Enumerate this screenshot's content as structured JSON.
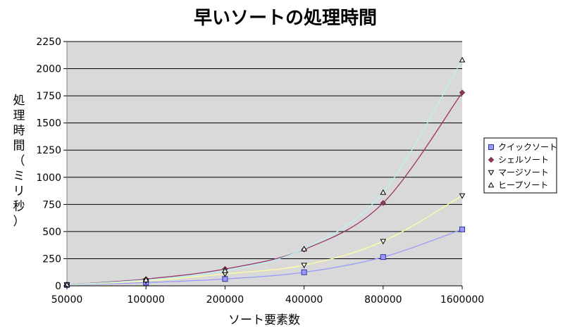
{
  "chart_data": {
    "type": "scatter",
    "title": "早いソートの処理時間",
    "xlabel": "ソート要素数",
    "ylabel": "処理時間（ミリ秒）",
    "x": [
      50000,
      100000,
      200000,
      400000,
      800000,
      1600000
    ],
    "x_tick_labels": [
      "50000",
      "100000",
      "200000",
      "400000",
      "800000",
      "1600000"
    ],
    "x_scale": "log",
    "ylim": [
      0,
      2250
    ],
    "y_ticks": [
      0,
      250,
      500,
      750,
      1000,
      1250,
      1500,
      1750,
      2000,
      2250
    ],
    "y_tick_labels": [
      "0",
      "250",
      "500",
      "750",
      "1000",
      "1250",
      "1500",
      "1750",
      "2000",
      "2250"
    ],
    "grid": true,
    "legend_position": "right",
    "series": [
      {
        "name": "クイックソート",
        "marker": "square",
        "color": "#9999ff",
        "marker_fill": "#9999ff",
        "marker_stroke": "#333399",
        "trend_color": "#9999ff",
        "values": [
          8,
          30,
          63,
          125,
          265,
          520
        ]
      },
      {
        "name": "シェルソート",
        "marker": "diamond",
        "color": "#993366",
        "marker_fill": "#993366",
        "marker_stroke": "#663344",
        "trend_color": "#993366",
        "values": [
          10,
          62,
          155,
          335,
          763,
          1780
        ]
      },
      {
        "name": "マージソート",
        "marker": "triangle-down",
        "color": "#ffff99",
        "marker_fill": "#ffffff",
        "marker_stroke": "#000000",
        "trend_color": "#ffffa0",
        "values": [
          9,
          45,
          110,
          190,
          410,
          830
        ]
      },
      {
        "name": "ヒープソート",
        "marker": "triangle-up",
        "color": "#ccffff",
        "marker_fill": "#ffffff",
        "marker_stroke": "#000000",
        "trend_color": "#b8f4f4",
        "values": [
          10,
          55,
          140,
          340,
          860,
          2080
        ]
      }
    ]
  },
  "colors": {
    "plot_background": "#d9d9d9",
    "gridline": "#000000"
  }
}
